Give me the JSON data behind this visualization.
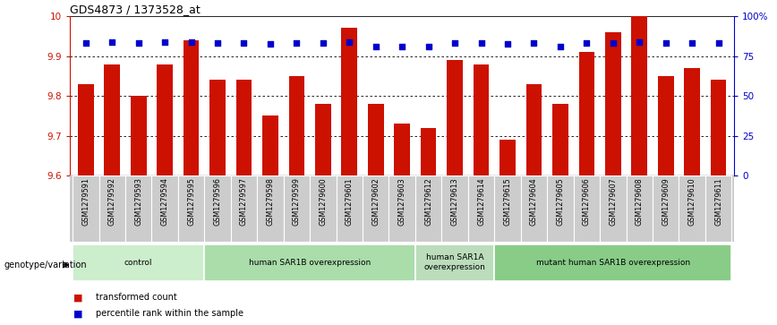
{
  "title": "GDS4873 / 1373528_at",
  "samples": [
    "GSM1279591",
    "GSM1279592",
    "GSM1279593",
    "GSM1279594",
    "GSM1279595",
    "GSM1279596",
    "GSM1279597",
    "GSM1279598",
    "GSM1279599",
    "GSM1279600",
    "GSM1279601",
    "GSM1279602",
    "GSM1279603",
    "GSM1279612",
    "GSM1279613",
    "GSM1279614",
    "GSM1279615",
    "GSM1279604",
    "GSM1279605",
    "GSM1279606",
    "GSM1279607",
    "GSM1279608",
    "GSM1279609",
    "GSM1279610",
    "GSM1279611"
  ],
  "bar_values": [
    9.83,
    9.88,
    9.8,
    9.88,
    9.94,
    9.84,
    9.84,
    9.75,
    9.85,
    9.78,
    9.97,
    9.78,
    9.73,
    9.72,
    9.89,
    9.88,
    9.69,
    9.83,
    9.78,
    9.91,
    9.96,
    10.0,
    9.85,
    9.87,
    9.84
  ],
  "percentile_values": [
    9.932,
    9.934,
    9.932,
    9.934,
    9.936,
    9.932,
    9.932,
    9.93,
    9.932,
    9.932,
    9.936,
    9.924,
    9.924,
    9.924,
    9.932,
    9.932,
    9.93,
    9.932,
    9.924,
    9.932,
    9.932,
    9.934,
    9.932,
    9.932,
    9.932
  ],
  "ylim": [
    9.6,
    10.0
  ],
  "bar_color": "#cc1100",
  "dot_color": "#0000cc",
  "bar_bottom": 9.6,
  "groups": [
    {
      "label": "control",
      "start": 0,
      "end": 4,
      "color": "#cceecc"
    },
    {
      "label": "human SAR1B overexpression",
      "start": 5,
      "end": 12,
      "color": "#aaddaa"
    },
    {
      "label": "human SAR1A\noverexpression",
      "start": 13,
      "end": 15,
      "color": "#bbddbb"
    },
    {
      "label": "mutant human SAR1B overexpression",
      "start": 16,
      "end": 24,
      "color": "#88cc88"
    }
  ],
  "legend_bar_label": "transformed count",
  "legend_dot_label": "percentile rank within the sample",
  "genotype_label": "genotype/variation",
  "yticks_left": [
    9.6,
    9.7,
    9.8,
    9.9,
    10.0
  ],
  "yticks_left_labels": [
    "9.6",
    "9.7",
    "9.8",
    "9.9",
    "10"
  ],
  "yticks_right_pct": [
    0,
    25,
    50,
    75,
    100
  ],
  "yticks_right_labels": [
    "0",
    "25",
    "50",
    "75",
    "100%"
  ],
  "grid_lines": [
    9.7,
    9.8,
    9.9
  ],
  "xtick_bg": "#cccccc",
  "fig_bg": "#ffffff"
}
